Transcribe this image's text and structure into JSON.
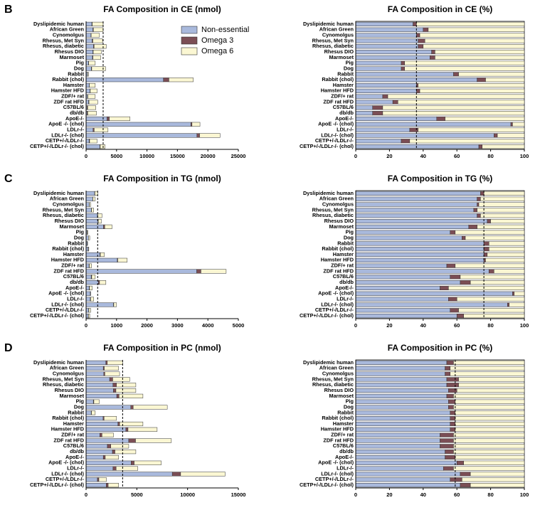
{
  "chart_data": [
    {
      "type": "bar",
      "orientation": "horizontal",
      "stacked": true,
      "panel": "B",
      "title": "FA Composition in CE (nmol)",
      "legend": "upper right",
      "categories": [
        "Dyslipidemic human",
        "African Green",
        "Cynomolgus",
        "Rhesus, Met Syn",
        "Rhesus, diabetic",
        "Rhesus DIO",
        "Marmoset",
        "Pig",
        "Dog",
        "Rabbit",
        "Rabbit (chol)",
        "Hamster",
        "Hamster HFD",
        "ZDF/+ rat",
        "ZDF rat HFD",
        "C57BL/6",
        "db/db",
        "ApoE-/-",
        "ApoE -/- (chol)",
        "LDLr-/-",
        "LDLr-/- (chol)",
        "CETP+/-/LDLr-/-",
        "CETP+/-/LDLr-/- (chol)"
      ],
      "series": [
        {
          "name": "Non-essential",
          "color": "#a9b9dc",
          "values": [
            950,
            1120,
            790,
            1000,
            1220,
            1125,
            1056,
            405,
            864,
            232,
            12700,
            540,
            650,
            240,
            420,
            160,
            170,
            3450,
            17200,
            1150,
            18200,
            490,
            2260
          ]
        },
        {
          "name": "Omega 3",
          "color": "#7b4e55",
          "values": [
            56,
            84,
            44,
            108,
            99,
            50,
            72,
            30,
            64,
            12,
            900,
            15,
            36,
            45,
            57,
            96,
            100,
            360,
            190,
            180,
            440,
            90,
            60
          ]
        },
        {
          "name": "Omega 6",
          "color": "#fbf7d3",
          "values": [
            1794,
            1596,
            1366,
            1592,
            1981,
            1325,
            1272,
            1065,
            2272,
            156,
            4000,
            945,
            1114,
            1215,
            1423,
            1344,
            1430,
            3390,
            1310,
            2270,
            3360,
            1220,
            780
          ]
        }
      ],
      "xlim": [
        0,
        25000
      ],
      "xticks": [
        0,
        5000,
        10000,
        15000,
        20000,
        25000
      ],
      "reference_line": 2800
    },
    {
      "type": "bar",
      "orientation": "horizontal",
      "stacked": true,
      "title": "FA Composition in CE (%)",
      "categories": [
        "Dyslipidemic human",
        "African Green",
        "Cynomolgus",
        "Rhesus, Met Syn",
        "Rhesus, diabetic",
        "Rhesus DIO",
        "Marmoset",
        "Pig",
        "Dog",
        "Rabbit",
        "Rabbit (chol)",
        "Hamster",
        "Hamster HFD",
        "ZDF/+ rat",
        "ZDF rat HFD",
        "C57BL/6",
        "db/db",
        "ApoE-/-",
        "ApoE -/- (chol)",
        "LDLr-/-",
        "LDLr-/- (chol)",
        "CETP+/-/LDLr-/-",
        "CETP+/-/LDLr-/- (chol)"
      ],
      "series": [
        {
          "name": "Non-essential",
          "color": "#a9b9dc",
          "values": [
            34,
            40,
            36,
            37,
            37,
            45,
            44,
            27,
            27,
            58,
            72,
            36,
            36,
            16,
            22,
            10,
            10,
            48,
            92,
            32,
            82,
            27,
            73
          ]
        },
        {
          "name": "Omega 3",
          "color": "#7b4e55",
          "values": [
            2,
            3,
            2,
            4,
            3,
            2,
            3,
            2,
            2,
            3,
            5,
            1,
            2,
            3,
            3,
            6,
            6,
            5,
            1,
            5,
            2,
            5,
            2
          ]
        },
        {
          "name": "Omega 6",
          "color": "#fbf7d3",
          "values": [
            64,
            57,
            62,
            59,
            60,
            53,
            53,
            71,
            71,
            39,
            23,
            63,
            62,
            81,
            75,
            84,
            84,
            47,
            7,
            63,
            16,
            68,
            25
          ]
        }
      ],
      "xlim": [
        0,
        100
      ],
      "xticks": [
        0,
        20,
        40,
        60,
        80,
        100
      ],
      "reference_line": 36
    },
    {
      "type": "bar",
      "orientation": "horizontal",
      "stacked": true,
      "panel": "C",
      "title": "FA Composition in TG (nmol)",
      "categories": [
        "Dyslipidemic human",
        "African Green",
        "Cynomolgus",
        "Rhesus, Met Syn",
        "Rhesus, diabetic",
        "Rhesus DIO",
        "Marmoset",
        "Pig",
        "Dog",
        "Rabbit",
        "Rabbit (chol)",
        "Hamster",
        "Hamster HFD",
        "ZDF/+ rat",
        "ZDF rat HFD",
        "C57BL/6",
        "db/db",
        "ApoE-/-",
        "ApoE -/- (chol)",
        "LDLr-/-",
        "LDLr-/- (chol)",
        "CETP+/-/LDLr-/-",
        "CETP+/-/LDLr-/- (chol)"
      ],
      "series": [
        {
          "name": "Non-essential",
          "color": "#a9b9dc",
          "values": [
            281,
            216,
            108,
            175,
            374,
            390,
            570,
            34,
            76,
            38,
            68,
            456,
            1026,
            97,
            3634,
            168,
            403,
            100,
            140,
            138,
            900,
            84,
            72
          ]
        },
        {
          "name": "Omega 3",
          "color": "#7b4e55",
          "values": [
            8,
            6,
            2,
            5,
            10,
            10,
            42,
            2,
            2,
            2,
            3,
            12,
            14,
            9,
            138,
            18,
            39,
            10,
            2,
            12,
            10,
            8,
            5
          ]
        },
        {
          "name": "Omega 6",
          "color": "#fbf7d3",
          "values": [
            91,
            78,
            40,
            70,
            136,
            100,
            238,
            24,
            42,
            10,
            19,
            132,
            310,
            74,
            828,
            114,
            208,
            90,
            8,
            100,
            90,
            58,
            43
          ]
        }
      ],
      "xlim": [
        0,
        5000
      ],
      "xticks": [
        0,
        1000,
        2000,
        3000,
        4000,
        5000
      ],
      "reference_line": 380
    },
    {
      "type": "bar",
      "orientation": "horizontal",
      "stacked": true,
      "title": "FA Composition in TG (%)",
      "categories": [
        "Dyslipidemic human",
        "African Green",
        "Cynomolgus",
        "Rhesus, Met Syn",
        "Rhesus, diabetic",
        "Rhesus DIO",
        "Marmoset",
        "Pig",
        "Dog",
        "Rabbit",
        "Rabbit (chol)",
        "Hamster",
        "Hamster HFD",
        "ZDF/+ rat",
        "ZDF rat HFD",
        "C57BL/6",
        "db/db",
        "ApoE-/-",
        "ApoE -/- (chol)",
        "LDLr-/-",
        "LDLr-/- (chol)",
        "CETP+/-/LDLr-/-",
        "CETP+/-/LDLr-/- (chol)"
      ],
      "series": [
        {
          "name": "Non-essential",
          "color": "#a9b9dc",
          "values": [
            74,
            72,
            72,
            70,
            72,
            78,
            67,
            56,
            63,
            76,
            76,
            76,
            76,
            54,
            79,
            56,
            62,
            50,
            93,
            55,
            90,
            56,
            60
          ]
        },
        {
          "name": "Omega 3",
          "color": "#7b4e55",
          "values": [
            2,
            2,
            1,
            2,
            2,
            2,
            5,
            3,
            2,
            3,
            3,
            2,
            1,
            5,
            3,
            6,
            6,
            5,
            1,
            5,
            1,
            5,
            4
          ]
        },
        {
          "name": "Omega 6",
          "color": "#fbf7d3",
          "values": [
            24,
            26,
            27,
            28,
            26,
            20,
            28,
            41,
            35,
            21,
            21,
            22,
            23,
            41,
            18,
            38,
            32,
            45,
            6,
            40,
            9,
            39,
            36
          ]
        }
      ],
      "xlim": [
        0,
        100
      ],
      "xticks": [
        0,
        20,
        40,
        60,
        80,
        100
      ],
      "reference_line": 76
    },
    {
      "type": "bar",
      "orientation": "horizontal",
      "stacked": true,
      "panel": "D",
      "title": "FA Composition in PC (nmol)",
      "categories": [
        "Dyslipidemic human",
        "African Green",
        "Cynomolgus",
        "Rhesus, Met Syn",
        "Rhesus, diabetic",
        "Rhesus DIO",
        "Marmoset",
        "Pig",
        "Dog",
        "Rabbit",
        "Rabbit (chol)",
        "Hamster",
        "Hamster HFD",
        "ZDF/+ rat",
        "ZDF rat HFD",
        "C57BL/6",
        "db/db",
        "ApoE-/-",
        "ApoE -/- (chol)",
        "LDLr-/-",
        "LDLr-/- (chol)",
        "CETP+/-/LDLr-/-",
        "CETP+/-/LDLr-/- (chol)"
      ],
      "series": [
        {
          "name": "Non-essential",
          "color": "#a9b9dc",
          "values": [
            1944,
            1696,
            1749,
            2322,
            2646,
            2695,
            3024,
            715,
            4400,
            504,
            1680,
            3136,
            3920,
            1350,
            4200,
            2100,
            2597,
            1696,
            4440,
            2652,
            8494,
            1120,
            1984
          ]
        },
        {
          "name": "Omega 3",
          "color": "#7b4e55",
          "values": [
            144,
            96,
            99,
            301,
            343,
            245,
            224,
            52,
            240,
            27,
            90,
            168,
            210,
            216,
            672,
            336,
            245,
            192,
            296,
            306,
            822,
            140,
            192
          ]
        },
        {
          "name": "Omega 6",
          "color": "#fbf7d3",
          "values": [
            1512,
            1408,
            1452,
            1677,
            1911,
            1960,
            2352,
            533,
            3360,
            369,
            1230,
            2296,
            2870,
            1134,
            3528,
            1764,
            2058,
            1312,
            2664,
            2142,
            4384,
            740,
            1024
          ]
        }
      ],
      "xlim": [
        0,
        15000
      ],
      "xticks": [
        0,
        5000,
        10000,
        15000
      ],
      "reference_line": 3600
    },
    {
      "type": "bar",
      "orientation": "horizontal",
      "stacked": true,
      "title": "FA Composition in PC (%)",
      "categories": [
        "Dyslipidemic human",
        "African Green",
        "Cynomolgus",
        "Rhesus, Met Syn",
        "Rhesus, diabetic",
        "Rhesus DIO",
        "Marmoset",
        "Pig",
        "Dog",
        "Rabbit",
        "Rabbit (chol)",
        "Hamster",
        "Hamster HFD",
        "ZDF/+ rat",
        "ZDF rat HFD",
        "C57BL/6",
        "db/db",
        "ApoE-/-",
        "ApoE -/- (chol)",
        "LDLr-/-",
        "LDLr-/- (chol)",
        "CETP+/-/LDLr-/-",
        "CETP+/-/LDLr-/- (chol)"
      ],
      "series": [
        {
          "name": "Non-essential",
          "color": "#a9b9dc",
          "values": [
            54,
            53,
            53,
            54,
            54,
            55,
            54,
            55,
            55,
            56,
            56,
            56,
            56,
            50,
            50,
            50,
            53,
            53,
            60,
            52,
            62,
            56,
            62
          ]
        },
        {
          "name": "Omega 3",
          "color": "#7b4e55",
          "values": [
            4,
            3,
            3,
            7,
            7,
            5,
            4,
            4,
            3,
            3,
            3,
            3,
            3,
            8,
            8,
            8,
            5,
            6,
            4,
            6,
            6,
            7,
            6
          ]
        },
        {
          "name": "Omega 6",
          "color": "#fbf7d3",
          "values": [
            42,
            44,
            44,
            39,
            39,
            40,
            42,
            41,
            42,
            41,
            41,
            41,
            41,
            42,
            42,
            42,
            42,
            41,
            36,
            42,
            32,
            37,
            32
          ]
        }
      ],
      "xlim": [
        0,
        100
      ],
      "xticks": [
        0,
        20,
        40,
        60,
        80,
        100
      ],
      "reference_line": 59
    }
  ]
}
